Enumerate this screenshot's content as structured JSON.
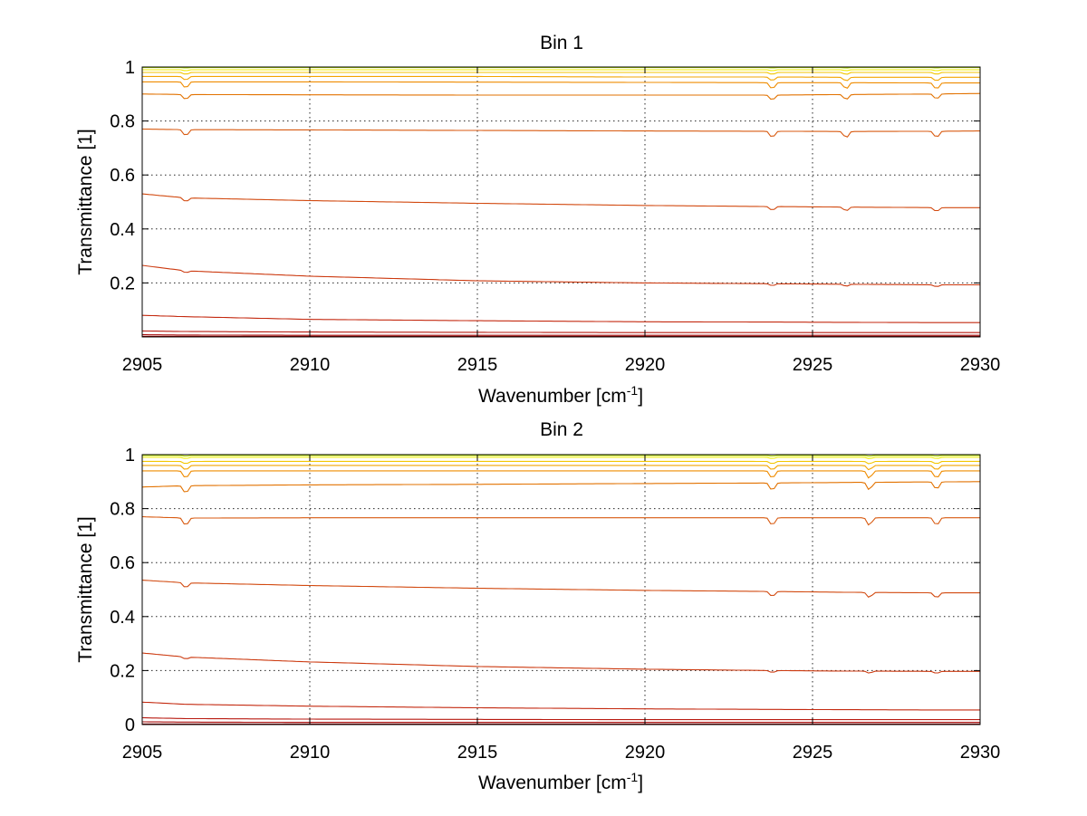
{
  "figure": {
    "background": "#ffffff"
  },
  "chart_data": [
    {
      "type": "line",
      "title": "Bin 1",
      "xlabel": "Wavenumber [cm",
      "xlabel_sup": "-1",
      "xlabel_end": "]",
      "ylabel": "Transmittance [1]",
      "xlim": [
        2905,
        2930
      ],
      "ylim": [
        0,
        1
      ],
      "grid": true,
      "xticks": [
        2905,
        2910,
        2915,
        2920,
        2925,
        2930
      ],
      "xtick_labels": [
        "2905",
        "2910",
        "2915",
        "2920",
        "2925",
        "2930"
      ],
      "yticks": [
        0.2,
        0.4,
        0.6,
        0.8,
        1
      ],
      "ytick_labels": [
        "0.2",
        "0.4",
        "0.6",
        "0.8",
        "1"
      ],
      "x": [
        2905,
        2906.3,
        2910,
        2915,
        2920,
        2923.8,
        2926,
        2928.7,
        2930
      ],
      "dips_at": [
        2906.3,
        2923.8,
        2926.0,
        2928.7
      ],
      "series": [
        {
          "color": "#00b8b0",
          "values": [
            1.0,
            1.0,
            1.0,
            1.0,
            1.0,
            1.0,
            1.0,
            1.0,
            1.0
          ],
          "dip": 0.0
        },
        {
          "color": "#b8e000",
          "values": [
            0.998,
            0.998,
            0.998,
            0.998,
            0.998,
            0.998,
            0.998,
            0.998,
            0.998
          ],
          "dip": 0.002
        },
        {
          "color": "#f0ec00",
          "values": [
            0.99,
            0.99,
            0.99,
            0.99,
            0.99,
            0.99,
            0.99,
            0.99,
            0.99
          ],
          "dip": 0.004
        },
        {
          "color": "#f3c600",
          "values": [
            0.98,
            0.98,
            0.98,
            0.98,
            0.98,
            0.98,
            0.98,
            0.98,
            0.98
          ],
          "dip": 0.008
        },
        {
          "color": "#f2a400",
          "values": [
            0.965,
            0.965,
            0.965,
            0.965,
            0.963,
            0.963,
            0.962,
            0.962,
            0.962
          ],
          "dip": 0.015
        },
        {
          "color": "#ef8c00",
          "values": [
            0.945,
            0.945,
            0.945,
            0.944,
            0.943,
            0.942,
            0.942,
            0.941,
            0.941
          ],
          "dip": 0.025
        },
        {
          "color": "#e27200",
          "values": [
            0.9,
            0.898,
            0.897,
            0.896,
            0.896,
            0.896,
            0.898,
            0.9,
            0.902
          ],
          "dip": 0.02
        },
        {
          "color": "#d85a10",
          "values": [
            0.77,
            0.768,
            0.767,
            0.765,
            0.763,
            0.762,
            0.761,
            0.762,
            0.763
          ],
          "dip": 0.025
        },
        {
          "color": "#d24a10",
          "values": [
            0.53,
            0.515,
            0.505,
            0.495,
            0.487,
            0.483,
            0.481,
            0.479,
            0.479
          ],
          "dip": 0.015
        },
        {
          "color": "#cc3a10",
          "values": [
            0.265,
            0.245,
            0.225,
            0.208,
            0.2,
            0.197,
            0.195,
            0.193,
            0.193
          ],
          "dip": 0.008
        },
        {
          "color": "#c42a10",
          "values": [
            0.08,
            0.075,
            0.065,
            0.06,
            0.056,
            0.055,
            0.054,
            0.053,
            0.053
          ],
          "dip": 0.0
        },
        {
          "color": "#b81a10",
          "values": [
            0.022,
            0.02,
            0.018,
            0.017,
            0.016,
            0.016,
            0.016,
            0.016,
            0.016
          ],
          "dip": 0.0
        },
        {
          "color": "#a80c0c",
          "values": [
            0.008,
            0.007,
            0.006,
            0.006,
            0.006,
            0.006,
            0.006,
            0.006,
            0.006
          ],
          "dip": 0.0
        },
        {
          "color": "#900000",
          "values": [
            0.002,
            0.002,
            0.002,
            0.002,
            0.002,
            0.002,
            0.002,
            0.002,
            0.002
          ],
          "dip": 0.0
        }
      ]
    },
    {
      "type": "line",
      "title": "Bin 2",
      "xlabel": "Wavenumber [cm",
      "xlabel_sup": "-1",
      "xlabel_end": "]",
      "ylabel": "Transmittance [1]",
      "xlim": [
        2905,
        2930
      ],
      "ylim": [
        0,
        1
      ],
      "grid": true,
      "xticks": [
        2905,
        2910,
        2915,
        2920,
        2925,
        2930
      ],
      "xtick_labels": [
        "2905",
        "2910",
        "2915",
        "2920",
        "2925",
        "2930"
      ],
      "yticks": [
        0,
        0.2,
        0.4,
        0.6,
        0.8,
        1
      ],
      "ytick_labels": [
        "0",
        "0.2",
        "0.4",
        "0.6",
        "0.8",
        "1"
      ],
      "x": [
        2905,
        2906.3,
        2910,
        2915,
        2920,
        2923.8,
        2926,
        2928.7,
        2930
      ],
      "dips_at": [
        2906.3,
        2923.8,
        2926.7,
        2928.7
      ],
      "series": [
        {
          "color": "#00b8b0",
          "values": [
            1.0,
            1.0,
            1.0,
            1.0,
            1.0,
            1.0,
            1.0,
            1.0,
            1.0
          ],
          "dip": 0.0
        },
        {
          "color": "#b8e000",
          "values": [
            0.997,
            0.997,
            0.997,
            0.997,
            0.997,
            0.997,
            0.997,
            0.997,
            0.997
          ],
          "dip": 0.003
        },
        {
          "color": "#f0ec00",
          "values": [
            0.99,
            0.99,
            0.99,
            0.99,
            0.99,
            0.99,
            0.99,
            0.99,
            0.99
          ],
          "dip": 0.005
        },
        {
          "color": "#f3c600",
          "values": [
            0.975,
            0.975,
            0.975,
            0.975,
            0.975,
            0.975,
            0.975,
            0.975,
            0.975
          ],
          "dip": 0.01
        },
        {
          "color": "#f2a400",
          "values": [
            0.96,
            0.96,
            0.96,
            0.96,
            0.96,
            0.96,
            0.96,
            0.96,
            0.96
          ],
          "dip": 0.018
        },
        {
          "color": "#ef8c00",
          "values": [
            0.94,
            0.94,
            0.94,
            0.94,
            0.94,
            0.94,
            0.94,
            0.94,
            0.94
          ],
          "dip": 0.03
        },
        {
          "color": "#e27200",
          "values": [
            0.88,
            0.885,
            0.888,
            0.89,
            0.893,
            0.895,
            0.897,
            0.899,
            0.9
          ],
          "dip": 0.03
        },
        {
          "color": "#d85a10",
          "values": [
            0.77,
            0.765,
            0.766,
            0.766,
            0.766,
            0.766,
            0.766,
            0.766,
            0.766
          ],
          "dip": 0.03
        },
        {
          "color": "#d24a10",
          "values": [
            0.535,
            0.525,
            0.515,
            0.505,
            0.497,
            0.493,
            0.49,
            0.488,
            0.488
          ],
          "dip": 0.02
        },
        {
          "color": "#cc3a10",
          "values": [
            0.265,
            0.25,
            0.232,
            0.215,
            0.205,
            0.2,
            0.198,
            0.197,
            0.197
          ],
          "dip": 0.008
        },
        {
          "color": "#c42a10",
          "values": [
            0.083,
            0.075,
            0.068,
            0.062,
            0.058,
            0.056,
            0.055,
            0.054,
            0.054
          ],
          "dip": 0.0
        },
        {
          "color": "#b81a10",
          "values": [
            0.025,
            0.022,
            0.02,
            0.019,
            0.018,
            0.018,
            0.018,
            0.018,
            0.018
          ],
          "dip": 0.0
        },
        {
          "color": "#a80c0c",
          "values": [
            0.01,
            0.009,
            0.008,
            0.008,
            0.008,
            0.008,
            0.008,
            0.008,
            0.008
          ],
          "dip": 0.0
        },
        {
          "color": "#900000",
          "values": [
            0.002,
            0.002,
            0.002,
            0.002,
            0.002,
            0.002,
            0.002,
            0.002,
            0.002
          ],
          "dip": 0.0
        }
      ]
    }
  ]
}
